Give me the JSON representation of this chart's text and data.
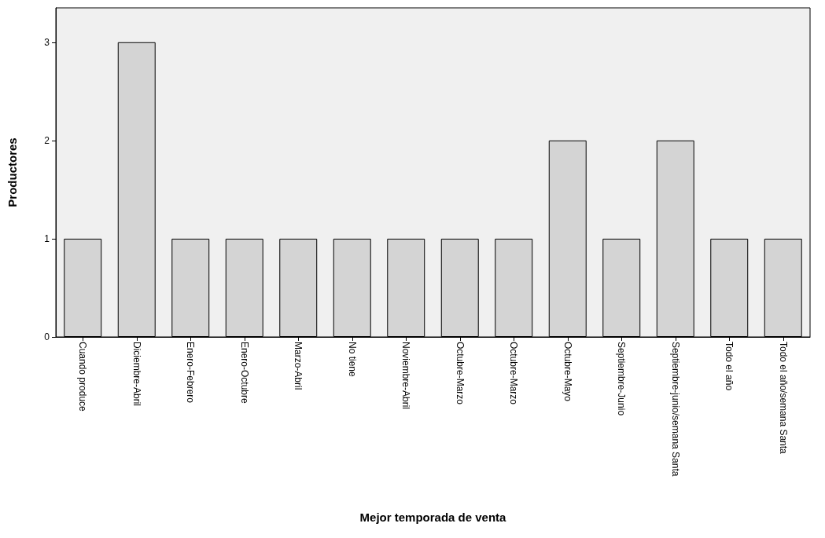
{
  "chart_data": {
    "type": "bar",
    "xlabel": "Mejor temporada de venta",
    "ylabel": "Productores",
    "categories": [
      "Cuando produce",
      "Diciembre-Abril",
      "Enero-Febrero",
      "Enero-Octubre",
      "Marzo-Abril",
      "No tiene",
      "Noviembre-Abril",
      "Octubre-Marzo",
      "Octubre-Marzo",
      "Octubre-Mayo",
      "Septiembre-Junio",
      "Septiembre-junio/semana Santa",
      "Todo el año",
      "Todo el año/semana Santa"
    ],
    "values": [
      1,
      3,
      1,
      1,
      1,
      1,
      1,
      1,
      1,
      2,
      1,
      2,
      1,
      1
    ],
    "color": "#d4d4d4",
    "ylim": [
      0,
      3.35
    ],
    "yticks": [
      0,
      1,
      2,
      3
    ],
    "grid": false
  }
}
